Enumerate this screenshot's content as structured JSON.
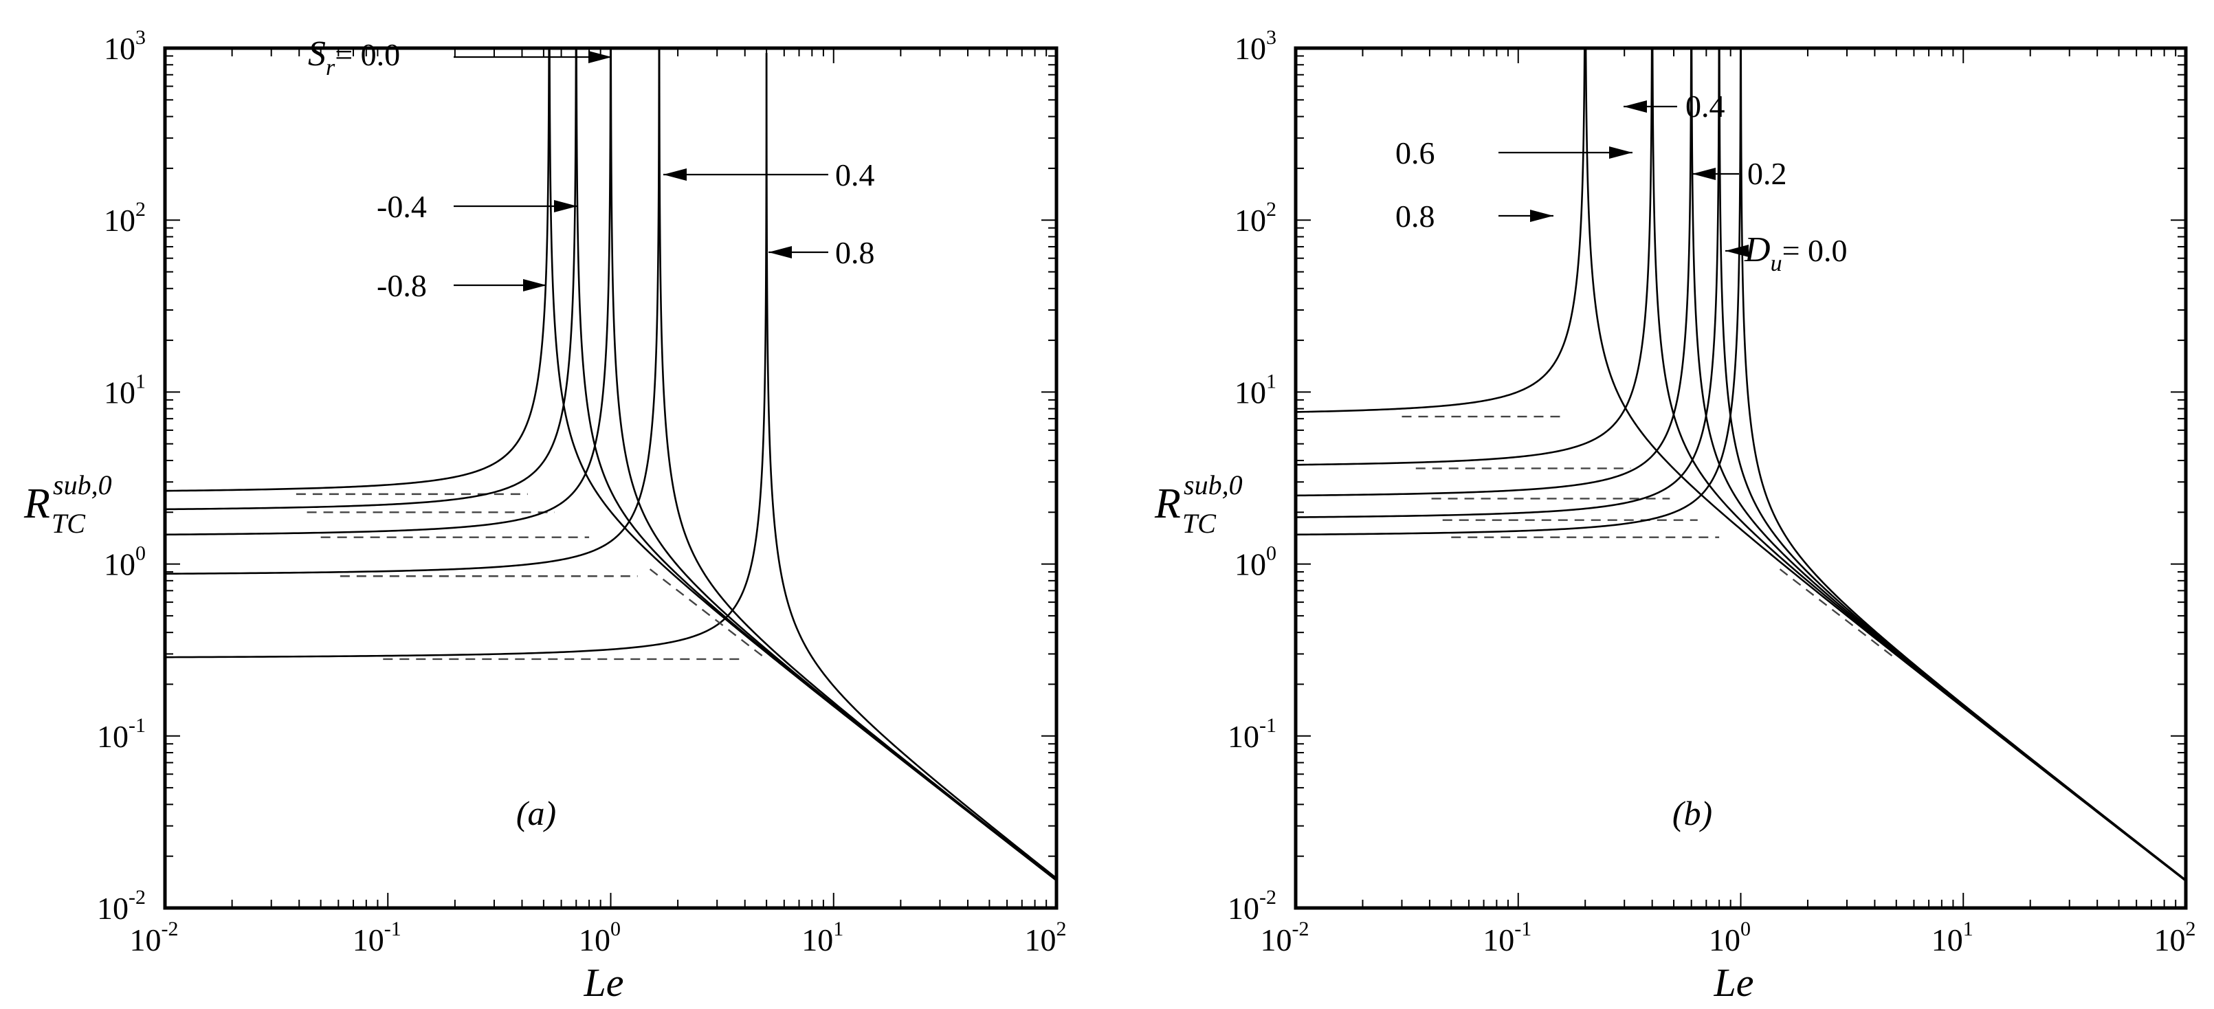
{
  "figure": {
    "panels": [
      "(a)",
      "(b)"
    ]
  },
  "chart_data": [
    {
      "type": "line",
      "panel_tag": "(a)",
      "title": "",
      "xlabel": "Le",
      "ylabel": {
        "main": "R",
        "sub": "TC",
        "sup": "sub,0"
      },
      "xscale": "log",
      "yscale": "log",
      "xlim": [
        0.01,
        100
      ],
      "ylim": [
        0.01,
        1000
      ],
      "x_ticks": [
        {
          "base": "10",
          "exp": "-2"
        },
        {
          "base": "10",
          "exp": "-1"
        },
        {
          "base": "10",
          "exp": "0"
        },
        {
          "base": "10",
          "exp": "1"
        },
        {
          "base": "10",
          "exp": "2"
        }
      ],
      "y_ticks": [
        {
          "base": "10",
          "exp": "-2"
        },
        {
          "base": "10",
          "exp": "-1"
        },
        {
          "base": "10",
          "exp": "0"
        },
        {
          "base": "10",
          "exp": "1"
        },
        {
          "base": "10",
          "exp": "2"
        },
        {
          "base": "10",
          "exp": "3"
        }
      ],
      "legend_var": {
        "symbol": "S",
        "subscript": "r",
        "prefix": "= "
      },
      "series": [
        {
          "name": "-0.8",
          "asymptote": 0.53,
          "plateau": 2.55,
          "y100": 0.014
        },
        {
          "name": "-0.4",
          "asymptote": 0.7,
          "plateau": 2.0,
          "y100": 0.014
        },
        {
          "name": "0.0",
          "asymptote": 1.0,
          "plateau": 1.43,
          "y100": 0.014
        },
        {
          "name": "0.4",
          "asymptote": 1.65,
          "plateau": 0.85,
          "y100": 0.014
        },
        {
          "name": "0.8",
          "asymptote": 5.0,
          "plateau": 0.28,
          "y100": 0.014
        }
      ],
      "annotations": [
        {
          "label": "0.0",
          "sym": true,
          "x": 0.98,
          "y": 530
        },
        {
          "label": "-0.4",
          "x": 0.69,
          "y": 105
        },
        {
          "label": "-0.8",
          "x": 0.53,
          "y": 13
        },
        {
          "label": "0.4",
          "x": 1.7,
          "y": 190
        },
        {
          "label": "0.8",
          "x": 5.1,
          "y": 58
        }
      ]
    },
    {
      "type": "line",
      "panel_tag": "(b)",
      "title": "",
      "xlabel": "Le",
      "ylabel": {
        "main": "R",
        "sub": "TC",
        "sup": "sub,0"
      },
      "xscale": "log",
      "yscale": "log",
      "xlim": [
        0.01,
        100
      ],
      "ylim": [
        0.01,
        1000
      ],
      "x_ticks": [
        {
          "base": "10",
          "exp": "-2"
        },
        {
          "base": "10",
          "exp": "-1"
        },
        {
          "base": "10",
          "exp": "0"
        },
        {
          "base": "10",
          "exp": "1"
        },
        {
          "base": "10",
          "exp": "2"
        }
      ],
      "y_ticks": [
        {
          "base": "10",
          "exp": "-2"
        },
        {
          "base": "10",
          "exp": "-1"
        },
        {
          "base": "10",
          "exp": "0"
        },
        {
          "base": "10",
          "exp": "1"
        },
        {
          "base": "10",
          "exp": "2"
        },
        {
          "base": "10",
          "exp": "3"
        }
      ],
      "legend_var": {
        "symbol": "D",
        "subscript": "u",
        "prefix": "= "
      },
      "series": [
        {
          "name": "0.8",
          "asymptote": 0.2,
          "plateau": 7.2,
          "y100": 0.014
        },
        {
          "name": "0.6",
          "asymptote": 0.4,
          "plateau": 3.6,
          "y100": 0.014
        },
        {
          "name": "0.4",
          "asymptote": 0.6,
          "plateau": 2.4,
          "y100": 0.014
        },
        {
          "name": "0.2",
          "asymptote": 0.8,
          "plateau": 1.8,
          "y100": 0.014
        },
        {
          "name": "0.0",
          "asymptote": 1.0,
          "plateau": 1.43,
          "y100": 0.014
        }
      ],
      "annotations": [
        {
          "label": "0.4",
          "x": 0.6,
          "y": 480
        },
        {
          "label": "0.6",
          "x": 0.4,
          "y": 250
        },
        {
          "label": "0.2",
          "x": 0.8,
          "y": 170
        },
        {
          "label": "0.8",
          "x": 0.2,
          "y": 105
        },
        {
          "label": "0.0",
          "sym": true,
          "x": 1.0,
          "y": 75
        }
      ]
    }
  ]
}
